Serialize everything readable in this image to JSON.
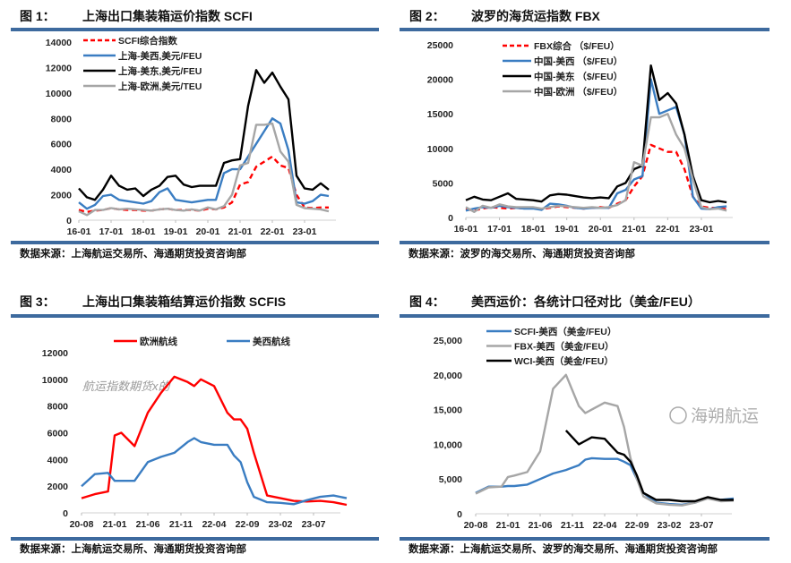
{
  "colors": {
    "rule": "#3D6A9E",
    "red": "#FF0000",
    "blue": "#3A7DC2",
    "black": "#000000",
    "gray": "#A6A6A6"
  },
  "chart_data": [
    {
      "type": "line",
      "figure_label": "图 1：",
      "title": "上海出口集装箱运价指数 SCFI",
      "source": "数据来源：上海航运交易所、海通期货投资咨询部",
      "ylim": [
        0,
        14000
      ],
      "yticks": [
        "0",
        "2000",
        "4000",
        "6000",
        "8000",
        "10000",
        "12000",
        "14000"
      ],
      "xticks": [
        "16-01",
        "17-01",
        "18-01",
        "19-01",
        "20-01",
        "21-01",
        "22-01",
        "23-01"
      ],
      "legend_placement": "top-left",
      "x": [
        "2016-01",
        "2016-04",
        "2016-07",
        "2016-10",
        "2017-01",
        "2017-04",
        "2017-07",
        "2017-10",
        "2018-01",
        "2018-04",
        "2018-07",
        "2018-10",
        "2019-01",
        "2019-04",
        "2019-07",
        "2019-10",
        "2020-01",
        "2020-04",
        "2020-07",
        "2020-10",
        "2021-01",
        "2021-04",
        "2021-07",
        "2021-10",
        "2022-01",
        "2022-04",
        "2022-07",
        "2022-10",
        "2023-01",
        "2023-04",
        "2023-07",
        "2023-10"
      ],
      "series": [
        {
          "name": "SCFI综合指数",
          "color": "#FF0000",
          "dash": true,
          "values": [
            800,
            650,
            750,
            800,
            950,
            850,
            800,
            800,
            750,
            750,
            850,
            900,
            800,
            800,
            800,
            750,
            900,
            850,
            1000,
            1400,
            2800,
            3000,
            4200,
            4600,
            5000,
            4300,
            4100,
            2000,
            1000,
            950,
            1000,
            1000
          ]
        },
        {
          "name": "上海-美西,美元/FEU",
          "color": "#3A7DC2",
          "values": [
            1400,
            900,
            1200,
            1900,
            2000,
            1600,
            1500,
            1400,
            1300,
            1500,
            2200,
            2500,
            1600,
            1500,
            1400,
            1500,
            1600,
            1600,
            3700,
            4000,
            4000,
            5000,
            6000,
            7000,
            8000,
            7600,
            5500,
            1400,
            1300,
            1500,
            2000,
            1900
          ]
        },
        {
          "name": "上海-美东,美元/FEU",
          "color": "#000000",
          "values": [
            2500,
            1800,
            1600,
            2400,
            3500,
            2700,
            2400,
            2500,
            1900,
            2400,
            2700,
            3400,
            3500,
            2800,
            2600,
            2700,
            2700,
            2700,
            4500,
            4700,
            4800,
            9000,
            11800,
            10800,
            11600,
            10500,
            9500,
            3500,
            2500,
            2400,
            2900,
            2400
          ]
        },
        {
          "name": "上海-欧洲,美元/TEU",
          "color": "#A6A6A6",
          "values": [
            700,
            400,
            800,
            800,
            950,
            850,
            900,
            850,
            800,
            750,
            850,
            900,
            800,
            750,
            850,
            750,
            1000,
            850,
            1100,
            2000,
            4300,
            4500,
            7500,
            7500,
            7600,
            5400,
            4600,
            1200,
            950,
            900,
            850,
            700
          ]
        }
      ]
    },
    {
      "type": "line",
      "figure_label": "图 2：",
      "title": "波罗的海货运指数 FBX",
      "source": "数据来源：波罗的海交易所、海通期货投资咨询部",
      "ylim": [
        0,
        25000
      ],
      "yticks": [
        "0",
        "5000",
        "10000",
        "15000",
        "20000",
        "25000"
      ],
      "xticks": [
        "16-01",
        "17-01",
        "18-01",
        "19-01",
        "20-01",
        "21-01",
        "22-01",
        "23-01"
      ],
      "legend_placement": "top-left",
      "x": [
        "2016-01",
        "2016-04",
        "2016-07",
        "2016-10",
        "2017-01",
        "2017-04",
        "2017-07",
        "2017-10",
        "2018-01",
        "2018-04",
        "2018-07",
        "2018-10",
        "2019-01",
        "2019-04",
        "2019-07",
        "2019-10",
        "2020-01",
        "2020-04",
        "2020-07",
        "2020-10",
        "2021-01",
        "2021-04",
        "2021-07",
        "2021-10",
        "2022-01",
        "2022-04",
        "2022-07",
        "2022-10",
        "2023-01",
        "2023-04",
        "2023-07",
        "2023-10"
      ],
      "series": [
        {
          "name": "FBX综合 （$/FEU）",
          "color": "#FF0000",
          "dash": true,
          "values": [
            1200,
            1000,
            1300,
            1500,
            1400,
            1300,
            1400,
            1300,
            1400,
            1200,
            1400,
            1600,
            1500,
            1400,
            1300,
            1400,
            1500,
            1400,
            2000,
            2500,
            4500,
            6000,
            10500,
            10000,
            9500,
            9500,
            7000,
            3000,
            1600,
            1400,
            1400,
            1200
          ]
        },
        {
          "name": "中国-美西 （$/FEU）",
          "color": "#3A7DC2",
          "values": [
            1000,
            1300,
            1500,
            1400,
            1700,
            1500,
            1400,
            1300,
            1300,
            1100,
            2000,
            1900,
            1700,
            1400,
            1300,
            1400,
            1400,
            1400,
            3500,
            4000,
            5500,
            6000,
            20000,
            15000,
            15500,
            16000,
            12000,
            3000,
            1300,
            1200,
            1500,
            1600
          ]
        },
        {
          "name": "中国-美东 （$/FEU）",
          "color": "#000000",
          "values": [
            2500,
            3000,
            2600,
            2500,
            3000,
            3500,
            2700,
            2600,
            2500,
            2300,
            3200,
            3400,
            3300,
            3100,
            2900,
            2800,
            2900,
            2800,
            4500,
            5000,
            7000,
            7500,
            22000,
            17000,
            18000,
            16500,
            12000,
            6000,
            2500,
            2200,
            2400,
            2200
          ]
        },
        {
          "name": "中国-欧洲 （$/FEU）",
          "color": "#A6A6A6",
          "values": [
            1500,
            800,
            1700,
            1400,
            1900,
            1600,
            1500,
            1500,
            1500,
            1300,
            1500,
            1700,
            1600,
            1500,
            1400,
            1500,
            1400,
            1500,
            1800,
            2500,
            8000,
            7500,
            14500,
            14500,
            15000,
            12000,
            10000,
            5500,
            1500,
            1200,
            1300,
            1000
          ]
        }
      ]
    },
    {
      "type": "line",
      "figure_label": "图 3：",
      "title": "上海出口集装箱结算运价指数 SCFIS",
      "source": "数据来源：上海航运交易所、海通期货投资咨询部",
      "watermark": "航运指数期货x的",
      "ylim": [
        0,
        12000
      ],
      "yticks": [
        "0",
        "2000",
        "4000",
        "6000",
        "8000",
        "10000",
        "12000"
      ],
      "xticks": [
        "20-08",
        "21-01",
        "21-06",
        "21-11",
        "22-04",
        "22-09",
        "23-02",
        "23-07"
      ],
      "legend_placement": "top",
      "x": [
        "2020-08",
        "2020-10",
        "2020-12",
        "2021-01",
        "2021-02",
        "2021-04",
        "2021-06",
        "2021-08",
        "2021-10",
        "2021-12",
        "2022-01",
        "2022-02",
        "2022-04",
        "2022-06",
        "2022-07",
        "2022-08",
        "2022-09",
        "2022-10",
        "2022-12",
        "2023-02",
        "2023-04",
        "2023-06",
        "2023-08",
        "2023-10",
        "2023-12"
      ],
      "series": [
        {
          "name": "欧洲航线",
          "color": "#FF0000",
          "values": [
            1100,
            1400,
            1600,
            5800,
            6000,
            5000,
            7500,
            9000,
            10200,
            9800,
            9500,
            10000,
            9500,
            7500,
            7000,
            7000,
            6300,
            4500,
            1300,
            1100,
            900,
            850,
            900,
            800,
            600
          ]
        },
        {
          "name": "美西航线",
          "color": "#3A7DC2",
          "values": [
            2000,
            2900,
            3000,
            2400,
            2400,
            2400,
            3800,
            4200,
            4500,
            5300,
            5600,
            5300,
            5100,
            5100,
            4300,
            3800,
            2300,
            1200,
            800,
            750,
            650,
            950,
            1200,
            1300,
            1100
          ]
        }
      ]
    },
    {
      "type": "line",
      "figure_label": "图 4：",
      "title": "美西运价：各统计口径对比（美金/FEU）",
      "source": "数据来源：上海航运交易所、波罗的海交易所、海通期货投资咨询部",
      "watermark": "海朔航运",
      "ylim": [
        0,
        25000
      ],
      "yticks": [
        "0",
        "5,000",
        "10,000",
        "15,000",
        "20,000",
        "25,000"
      ],
      "xticks": [
        "20-08",
        "21-01",
        "21-06",
        "21-11",
        "22-04",
        "22-09",
        "23-02",
        "23-07"
      ],
      "legend_placement": "top-left",
      "x": [
        "2020-08",
        "2020-10",
        "2020-12",
        "2021-01",
        "2021-02",
        "2021-04",
        "2021-06",
        "2021-08",
        "2021-10",
        "2021-12",
        "2022-01",
        "2022-02",
        "2022-04",
        "2022-06",
        "2022-07",
        "2022-08",
        "2022-09",
        "2022-10",
        "2022-12",
        "2023-02",
        "2023-04",
        "2023-06",
        "2023-08",
        "2023-10",
        "2023-12"
      ],
      "series": [
        {
          "name": "SCFI-美西（美金/FEU）",
          "color": "#3A7DC2",
          "values": [
            3000,
            3900,
            3900,
            4000,
            4000,
            4200,
            5000,
            5800,
            6300,
            7000,
            7800,
            8000,
            7900,
            7900,
            7500,
            7000,
            5000,
            3000,
            1600,
            1400,
            1300,
            1600,
            2300,
            2000,
            2200
          ]
        },
        {
          "name": "FBX-美西（美金/FEU）",
          "color": "#A6A6A6",
          "values": [
            2900,
            3800,
            3900,
            5300,
            5500,
            6000,
            9000,
            18000,
            20000,
            15500,
            14500,
            15000,
            16000,
            15500,
            12500,
            8000,
            5000,
            2500,
            1500,
            1300,
            1200,
            1600,
            2200,
            1800,
            1900
          ]
        },
        {
          "name": "WCI-美西（美金/FEU）",
          "color": "#000000",
          "values": [
            null,
            null,
            null,
            null,
            null,
            null,
            null,
            null,
            12000,
            10000,
            10500,
            11000,
            10800,
            8800,
            8500,
            7500,
            5500,
            3000,
            2000,
            2000,
            1800,
            1800,
            2400,
            2000,
            2000
          ]
        }
      ]
    }
  ]
}
